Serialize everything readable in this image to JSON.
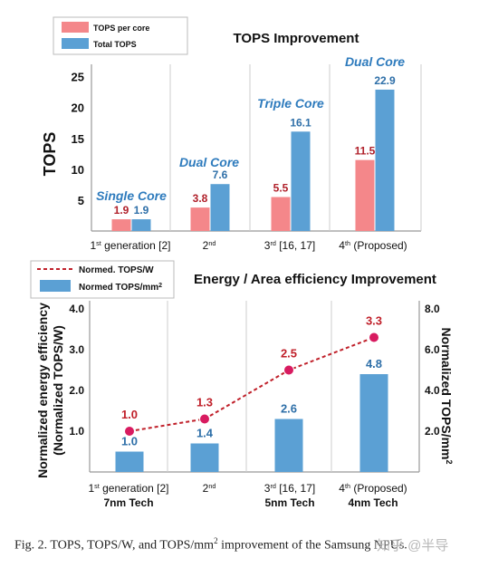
{
  "chart_data": [
    {
      "type": "bar",
      "title": "TOPS Improvement",
      "ylabel": "TOPS",
      "ylim": [
        0,
        27
      ],
      "yticks": [
        "5",
        "10",
        "15",
        "20",
        "25"
      ],
      "yticks_values": [
        5,
        10,
        15,
        20,
        25
      ],
      "categories": [
        {
          "main": "1",
          "sup": "st",
          "rest": " generation [2]"
        },
        {
          "main": "2",
          "sup": "nd",
          "rest": ""
        },
        {
          "main": "3",
          "sup": "rd",
          "rest": "  [16, 17]"
        },
        {
          "main": "4",
          "sup": "th",
          "rest": " (Proposed)"
        }
      ],
      "series": [
        {
          "name": "TOPS per core",
          "color": "#f4878a",
          "values": [
            1.9,
            3.8,
            5.5,
            11.5
          ],
          "labels": [
            "1.9",
            "3.8",
            "5.5",
            "11.5"
          ],
          "label_color": "#b0202a"
        },
        {
          "name": "Total TOPS",
          "color": "#5ba0d4",
          "values": [
            1.9,
            7.6,
            16.1,
            22.9
          ],
          "labels": [
            "1.9",
            "7.6",
            "16.1",
            "22.9"
          ],
          "label_color": "#2e6fa8"
        }
      ],
      "annotations": [
        "Single Core",
        "Dual Core",
        "Triple Core",
        "Dual Core"
      ],
      "annotation_color": "#2e7bbd",
      "legend": "top-left"
    },
    {
      "type": "bar+line",
      "title": "Energy / Area efficiency Improvement",
      "ylabel_left": [
        "Normalized energy efficiency",
        "(Normalized TOPS/W)"
      ],
      "ylabel_right": "Normalized TOPS/mm",
      "ylabel_right_sup": "2",
      "yleft_lim": [
        0,
        4.2
      ],
      "yleft_ticks": [
        "1.0",
        "2.0",
        "3.0",
        "4.0"
      ],
      "yleft_ticks_values": [
        1,
        2,
        3,
        4
      ],
      "yright_lim": [
        0,
        8.4
      ],
      "yright_ticks": [
        "2.0",
        "4.0",
        "6.0",
        "8.0"
      ],
      "yright_ticks_values": [
        2,
        4,
        6,
        8
      ],
      "categories": [
        {
          "main": "1",
          "sup": "st",
          "rest": " generation [2]",
          "tech": "7nm Tech"
        },
        {
          "main": "2",
          "sup": "nd",
          "rest": "",
          "tech": ""
        },
        {
          "main": "3",
          "sup": "rd",
          "rest": "  [16, 17]",
          "tech": "5nm Tech"
        },
        {
          "main": "4",
          "sup": "th",
          "rest": " (Proposed)",
          "tech": "4nm Tech"
        }
      ],
      "series": [
        {
          "name": "Normed. TOPS/W",
          "type": "line",
          "axis": "left",
          "color": "#c0202a",
          "values": [
            1.0,
            1.3,
            2.5,
            3.3
          ],
          "labels": [
            "1.0",
            "1.3",
            "2.5",
            "3.3"
          ]
        },
        {
          "name": "Normed TOPS/mm",
          "name_sup": "2",
          "type": "bar",
          "axis": "right",
          "color": "#5ba0d4",
          "values": [
            1.0,
            1.4,
            2.6,
            4.8
          ],
          "labels": [
            "1.0",
            "1.4",
            "2.6",
            "4.8"
          ],
          "label_color": "#2e6fa8"
        }
      ],
      "legend": "top-left"
    }
  ],
  "caption": {
    "prefix": "Fig. 2.   TOPS, TOPS/W, and TOPS/mm",
    "sup": "2",
    "suffix": " improvement of the Samsung NPUs."
  },
  "watermark": "知乎 @半导"
}
